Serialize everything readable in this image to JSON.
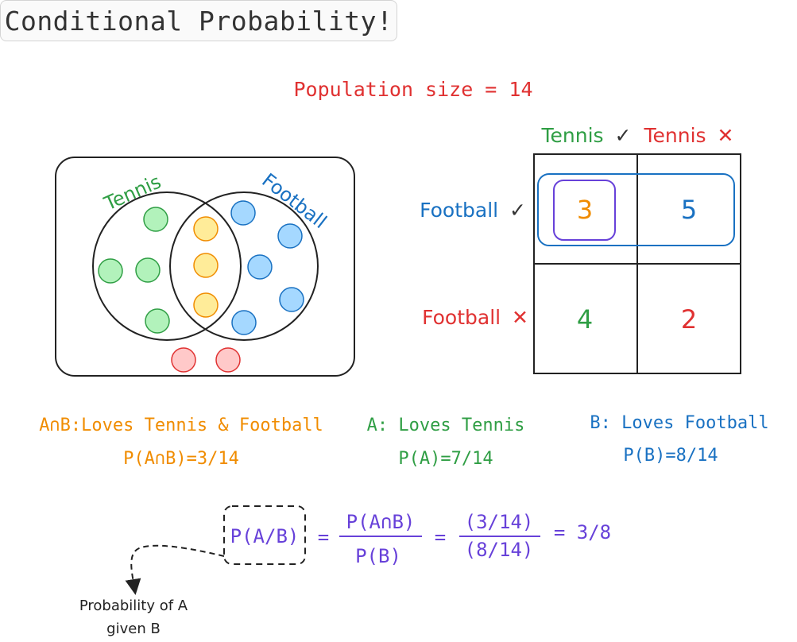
{
  "title": "Conditional Probability!",
  "population": "Population size = 14",
  "venn": {
    "tennis_label": "Tennis",
    "football_label": "Football",
    "tennis_only_count": 4,
    "both_count": 3,
    "football_only_count": 5,
    "neither_count": 2
  },
  "table": {
    "col_headers": [
      {
        "text": "Tennis",
        "mark": "✓"
      },
      {
        "text": "Tennis",
        "mark": "✕"
      }
    ],
    "row_headers": [
      {
        "text": "Football",
        "mark": "✓"
      },
      {
        "text": "Football",
        "mark": "✕"
      }
    ],
    "cells": [
      [
        "3",
        "5"
      ],
      [
        "4",
        "2"
      ]
    ]
  },
  "definitions": [
    {
      "label": "A∩B:Loves Tennis & Football",
      "prob": "P(A∩B)=3/14"
    },
    {
      "label": "A: Loves Tennis",
      "prob": "P(A)=7/14"
    },
    {
      "label": "B: Loves Football",
      "prob": "P(B)=8/14"
    }
  ],
  "formula": {
    "lhs": "P(A/B)",
    "eq1": "=",
    "frac1_num": "P(A∩B)",
    "frac1_den": "P(B)",
    "eq2": "=",
    "frac2_num": "(3/14)",
    "frac2_den": "(8/14)",
    "result": "= 3/8"
  },
  "annotation": [
    "Probability of A",
    "given B"
  ],
  "colors": {
    "tennis": "#2f9e44",
    "football": "#1971c2",
    "both": "#f08c00",
    "neither": "#e03131",
    "formula": "#6741d9",
    "title": "#333333",
    "tennis_fill": "#b2f2bb",
    "football_fill": "#a5d8ff",
    "both_fill": "#ffec99",
    "neither_fill": "#ffc9c9"
  }
}
